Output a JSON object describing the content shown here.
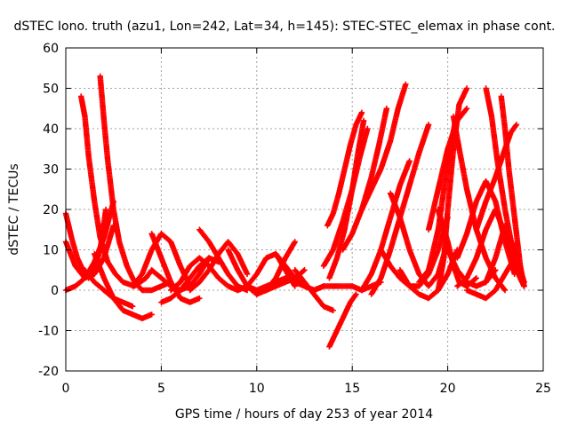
{
  "chart_data": {
    "type": "scatter",
    "title": "dSTEC Iono. truth (azu1, Lon=242, Lat=34, h=145): STEC-STEC_elemax in phase cont.",
    "xlabel": "GPS time / hours of day 253 of year 2014",
    "ylabel": "dSTEC  / TECUs",
    "xlim": [
      0,
      25
    ],
    "ylim": [
      -20,
      60
    ],
    "xticks": [
      0,
      5,
      10,
      15,
      20,
      25
    ],
    "yticks": [
      -20,
      -10,
      0,
      10,
      20,
      30,
      40,
      50,
      60
    ],
    "grid": true,
    "marker": "plus",
    "color": "#ff0000",
    "arcs": [
      {
        "x": [
          0,
          0.3,
          0.6,
          0.9,
          1.2,
          1.5,
          1.8,
          2.1
        ],
        "y": [
          19,
          13,
          8,
          5,
          3,
          5,
          10,
          20
        ]
      },
      {
        "x": [
          0,
          0.5,
          1.0,
          1.5,
          2.0,
          2.5
        ],
        "y": [
          12,
          6,
          3,
          4,
          8,
          16
        ]
      },
      {
        "x": [
          0,
          0.5,
          1.0,
          1.5,
          2.0,
          2.5
        ],
        "y": [
          0,
          1,
          3,
          7,
          13,
          22
        ]
      },
      {
        "x": [
          0.8,
          1.0,
          1.2,
          1.5,
          1.8,
          2.2,
          2.6,
          3.0,
          3.6,
          4.2,
          4.5
        ],
        "y": [
          48,
          43,
          33,
          22,
          13,
          7,
          4,
          2,
          1,
          3,
          5
        ]
      },
      {
        "x": [
          1.8,
          2.0,
          2.2,
          2.5,
          2.8,
          3.2,
          3.6,
          4.0,
          4.5,
          5.0,
          5.5
        ],
        "y": [
          53,
          42,
          32,
          20,
          12,
          6,
          2,
          0,
          0,
          1,
          2
        ]
      },
      {
        "x": [
          1.5,
          2.0,
          2.5,
          3.0,
          3.5,
          4.0,
          4.5
        ],
        "y": [
          9,
          3,
          -2,
          -5,
          -6,
          -7,
          -6
        ]
      },
      {
        "x": [
          1.0,
          1.5,
          2.0,
          2.5,
          3.0,
          3.5
        ],
        "y": [
          5,
          2,
          0,
          -2,
          -3,
          -4
        ]
      },
      {
        "x": [
          3.5,
          4.0,
          4.5,
          5.0,
          5.5,
          6.0,
          6.5
        ],
        "y": [
          1,
          4,
          10,
          14,
          12,
          6,
          1
        ]
      },
      {
        "x": [
          4.5,
          5.0,
          5.5,
          6.0,
          6.5,
          7.0
        ],
        "y": [
          14,
          8,
          2,
          -2,
          -3,
          -2
        ]
      },
      {
        "x": [
          4.5,
          5.0,
          5.5,
          6.0,
          6.5,
          7.0,
          7.5
        ],
        "y": [
          5,
          3,
          1,
          0,
          1,
          4,
          8
        ]
      },
      {
        "x": [
          5.0,
          5.5,
          6.0,
          6.5,
          7.0,
          7.5,
          8.0
        ],
        "y": [
          -3,
          -2,
          0,
          3,
          6,
          8,
          7
        ]
      },
      {
        "x": [
          5.5,
          6.0,
          6.5,
          7.0,
          7.5,
          8.0,
          8.5,
          9.0,
          9.5
        ],
        "y": [
          0,
          2,
          6,
          8,
          6,
          3,
          1,
          0,
          1
        ]
      },
      {
        "x": [
          7.0,
          7.5,
          8.0,
          8.5,
          9.0,
          9.5
        ],
        "y": [
          15,
          12,
          8,
          4,
          1,
          0
        ]
      },
      {
        "x": [
          6.5,
          7.0,
          7.5,
          8.0,
          8.5,
          9.0,
          9.5
        ],
        "y": [
          0,
          2,
          5,
          9,
          12,
          9,
          4
        ]
      },
      {
        "x": [
          8.5,
          9.0,
          9.5,
          10.0,
          10.5,
          11.0,
          11.5,
          12.0
        ],
        "y": [
          10,
          5,
          1,
          -1,
          0,
          3,
          8,
          12
        ]
      },
      {
        "x": [
          9.0,
          9.5,
          10.0,
          10.5,
          11.0,
          11.5,
          12.0
        ],
        "y": [
          0,
          1,
          4,
          8,
          9,
          5,
          1
        ]
      },
      {
        "x": [
          9.5,
          10.0,
          10.5,
          11.0,
          11.5,
          12.0,
          12.5
        ],
        "y": [
          1,
          0,
          0,
          1,
          2,
          3,
          5
        ]
      },
      {
        "x": [
          10.0,
          10.5,
          11.0,
          11.5,
          12.0,
          12.5,
          13.0
        ],
        "y": [
          0,
          1,
          2,
          3,
          2,
          1,
          0
        ]
      },
      {
        "x": [
          11.0,
          11.5,
          12.0,
          12.5,
          13.0,
          13.5
        ],
        "y": [
          9,
          6,
          3,
          1,
          0,
          1
        ]
      },
      {
        "x": [
          12.0,
          12.5,
          13.0,
          13.5,
          14.0
        ],
        "y": [
          5,
          2,
          -1,
          -4,
          -5
        ]
      },
      {
        "x": [
          13.8,
          14.0,
          14.3,
          14.6,
          14.9,
          15.2
        ],
        "y": [
          -14,
          -12,
          -9,
          -6,
          -3,
          -1
        ]
      },
      {
        "x": [
          13.0,
          13.5,
          14.0,
          14.5,
          15.0,
          15.5,
          16.0,
          16.5
        ],
        "y": [
          0,
          1,
          1,
          1,
          1,
          0,
          1,
          2
        ]
      },
      {
        "x": [
          13.7,
          14.0,
          14.3,
          14.6,
          14.9,
          15.2,
          15.5
        ],
        "y": [
          16,
          19,
          24,
          30,
          36,
          41,
          44
        ]
      },
      {
        "x": [
          13.5,
          14.0,
          14.5,
          15.0,
          15.4,
          15.8
        ],
        "y": [
          6,
          10,
          17,
          25,
          33,
          40
        ]
      },
      {
        "x": [
          13.8,
          14.2,
          14.6,
          15.0,
          15.3,
          15.6
        ],
        "y": [
          3,
          8,
          15,
          25,
          34,
          42
        ]
      },
      {
        "x": [
          14.5,
          15.0,
          15.5,
          16.0,
          16.4,
          16.8
        ],
        "y": [
          10,
          14,
          20,
          28,
          36,
          45
        ]
      },
      {
        "x": [
          15.5,
          16.0,
          16.5,
          17.0,
          17.4,
          17.8
        ],
        "y": [
          20,
          25,
          30,
          37,
          45,
          51
        ]
      },
      {
        "x": [
          16.0,
          16.5,
          17.0,
          17.5,
          18.0,
          18.5,
          19.0
        ],
        "y": [
          -1,
          3,
          10,
          18,
          26,
          34,
          41
        ]
      },
      {
        "x": [
          15.5,
          16.0,
          16.5,
          17.0,
          17.5,
          18.0
        ],
        "y": [
          0,
          4,
          10,
          18,
          26,
          32
        ]
      },
      {
        "x": [
          16.5,
          17.0,
          17.5,
          18.0,
          18.5,
          19.0,
          19.5,
          20.0
        ],
        "y": [
          10,
          6,
          3,
          1,
          1,
          4,
          10,
          18
        ]
      },
      {
        "x": [
          17.0,
          17.5,
          18.0,
          18.5,
          19.0,
          19.5,
          20.0
        ],
        "y": [
          24,
          18,
          10,
          4,
          1,
          4,
          12
        ]
      },
      {
        "x": [
          17.5,
          18.0,
          18.5,
          19.0,
          19.5,
          20.0,
          20.5
        ],
        "y": [
          5,
          1,
          -1,
          -2,
          0,
          4,
          10
        ]
      },
      {
        "x": [
          19.5,
          19.8,
          20.0,
          20.3,
          20.6,
          21.0
        ],
        "y": [
          0,
          8,
          20,
          35,
          46,
          50
        ]
      },
      {
        "x": [
          18.5,
          19.0,
          19.5,
          19.8,
          20.1,
          20.4
        ],
        "y": [
          2,
          5,
          15,
          25,
          34,
          42
        ]
      },
      {
        "x": [
          19.0,
          19.5,
          20.0,
          20.5,
          21.0
        ],
        "y": [
          15,
          25,
          35,
          42,
          45
        ]
      },
      {
        "x": [
          19.5,
          20.0,
          20.3,
          20.6,
          21.0,
          21.5
        ],
        "y": [
          20,
          12,
          6,
          2,
          1,
          3
        ]
      },
      {
        "x": [
          20.3,
          20.6,
          21.0,
          21.5,
          22.0,
          22.5,
          23.0
        ],
        "y": [
          43,
          35,
          25,
          15,
          8,
          3,
          0
        ]
      },
      {
        "x": [
          19.5,
          20.0,
          20.5,
          21.0,
          21.5,
          22.0,
          22.5
        ],
        "y": [
          20,
          10,
          5,
          2,
          1,
          2,
          5
        ]
      },
      {
        "x": [
          20.5,
          21.0,
          21.5,
          22.0,
          22.5,
          23.0,
          23.5,
          24.0
        ],
        "y": [
          1,
          3,
          8,
          15,
          20,
          14,
          6,
          1
        ]
      },
      {
        "x": [
          21.0,
          21.5,
          22.0,
          22.5,
          23.0,
          23.5,
          24.0
        ],
        "y": [
          0,
          -1,
          -2,
          0,
          4,
          8,
          2
        ]
      },
      {
        "x": [
          20.5,
          21.0,
          21.5,
          22.0,
          22.5,
          23.0,
          23.5
        ],
        "y": [
          8,
          14,
          22,
          27,
          22,
          12,
          4
        ]
      },
      {
        "x": [
          22.0,
          22.3,
          22.6,
          23.0,
          23.4,
          23.8,
          24.0
        ],
        "y": [
          50,
          43,
          32,
          20,
          10,
          3,
          1
        ]
      },
      {
        "x": [
          22.8,
          23.0,
          23.2,
          23.5,
          23.8,
          24.0
        ],
        "y": [
          48,
          40,
          30,
          18,
          6,
          1
        ]
      },
      {
        "x": [
          21.5,
          22.0,
          22.5,
          23.0,
          23.3,
          23.6
        ],
        "y": [
          15,
          22,
          28,
          35,
          39,
          41
        ]
      },
      {
        "x": [
          22.0,
          22.5,
          23.0,
          23.5,
          24.0
        ],
        "y": [
          2,
          8,
          16,
          10,
          2
        ]
      }
    ]
  }
}
